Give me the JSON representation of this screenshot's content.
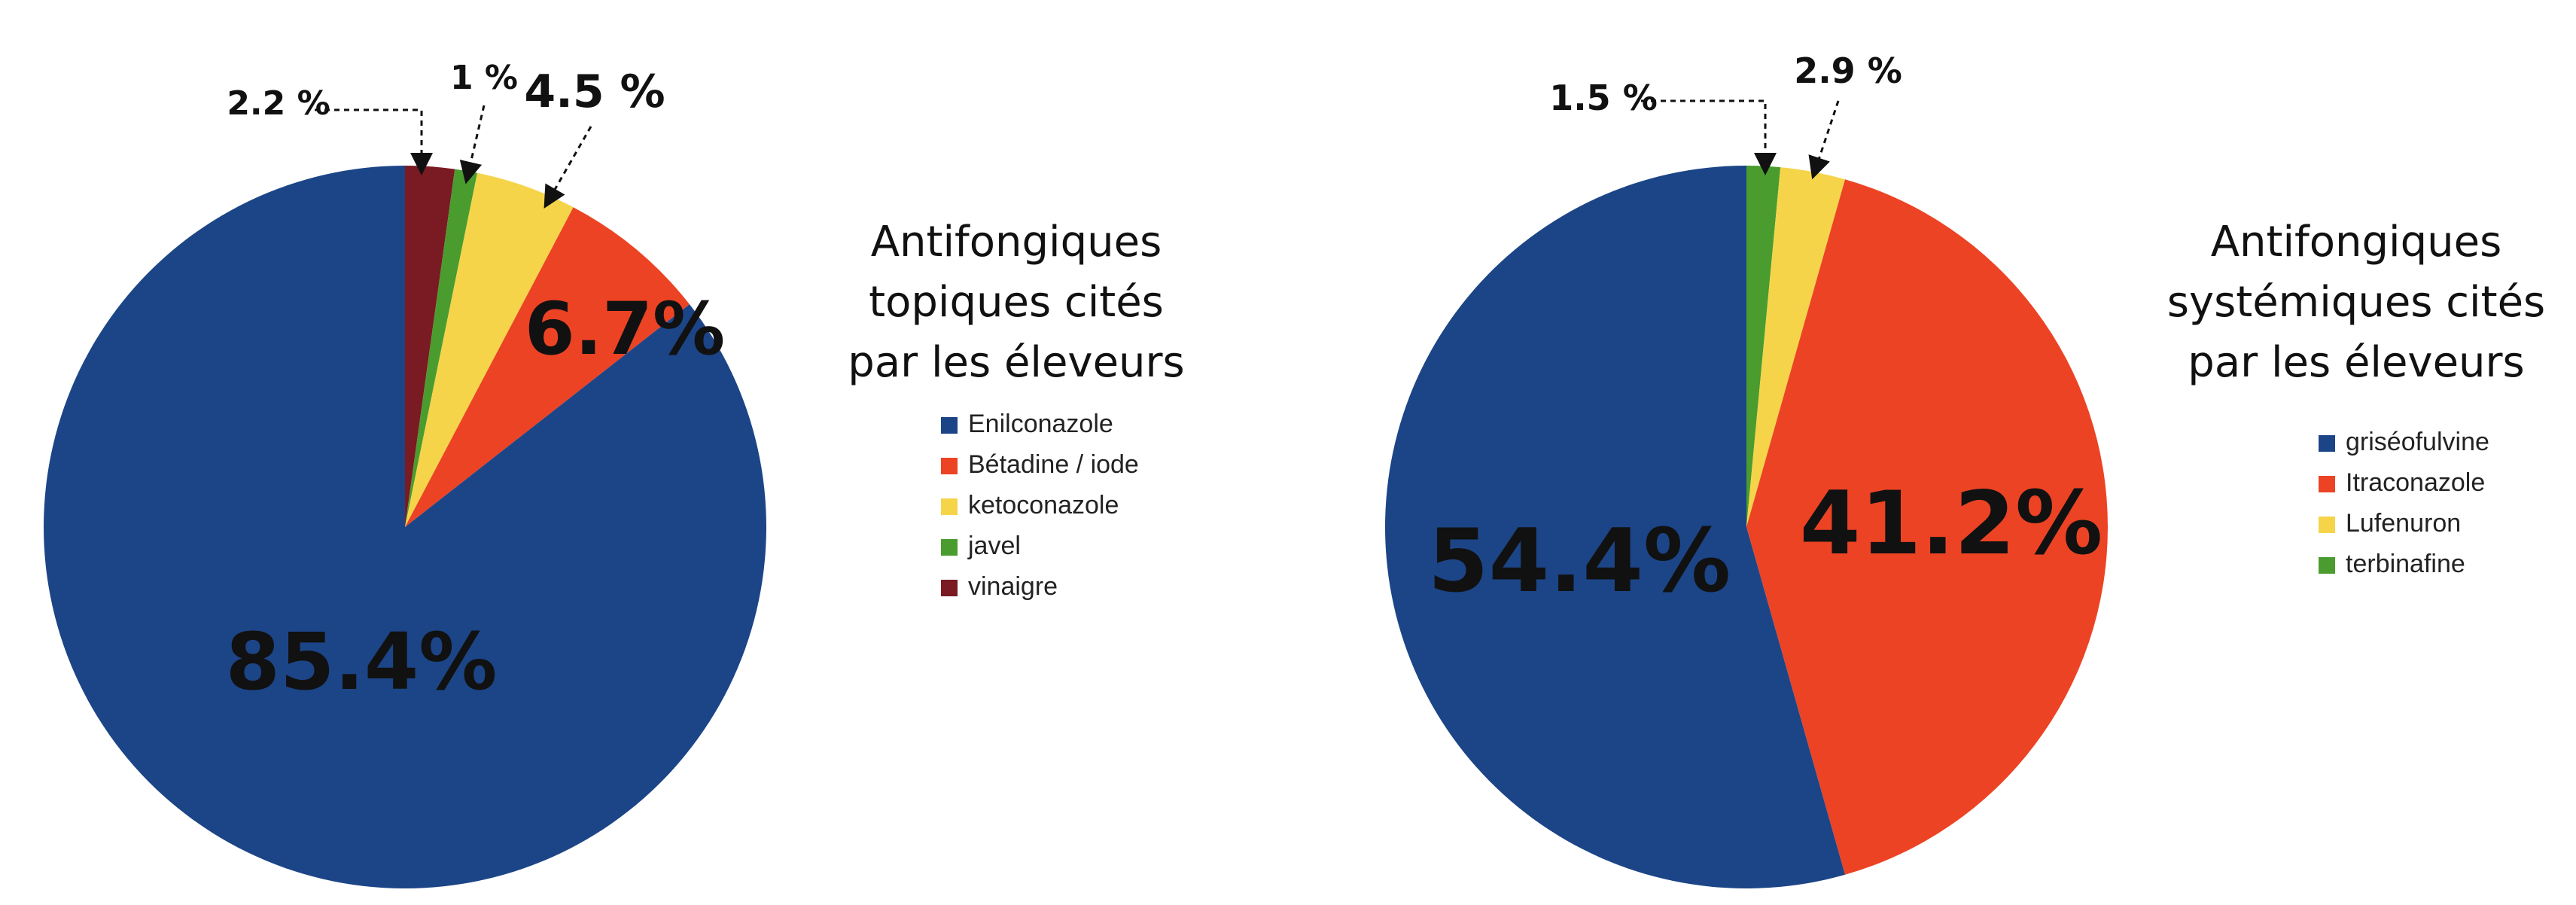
{
  "chart_data": [
    {
      "type": "pie",
      "title_lines": [
        "Antifongiques",
        "topiques cités",
        "par les éleveurs"
      ],
      "start": "top, clockwise",
      "slices": [
        {
          "name": "vinaigre",
          "value": 2.2,
          "color": "#7a1a22",
          "label": "2.2 %"
        },
        {
          "name": "javel",
          "value": 1,
          "color": "#4a9c2e",
          "label": "1 %"
        },
        {
          "name": "ketoconazole",
          "value": 4.5,
          "color": "#f5d44a",
          "label": "4.5 %"
        },
        {
          "name": "Bétadine / iode",
          "value": 6.7,
          "color": "#ec4324",
          "label": "6.7%"
        },
        {
          "name": "Enilconazole",
          "value": 85.4,
          "color": "#1c4587",
          "label": "85.4%"
        }
      ],
      "legend": [
        "Enilconazole",
        "Bétadine / iode",
        "ketoconazole",
        "javel",
        "vinaigre"
      ]
    },
    {
      "type": "pie",
      "title_lines": [
        "Antifongiques",
        "systémiques cités",
        "par les éleveurs"
      ],
      "start": "top, clockwise",
      "slices": [
        {
          "name": "terbinafine",
          "value": 1.5,
          "color": "#4a9c2e",
          "label": "1.5 %"
        },
        {
          "name": "Lufenuron",
          "value": 2.9,
          "color": "#f5d44a",
          "label": "2.9 %"
        },
        {
          "name": "Itraconazole",
          "value": 41.2,
          "color": "#ec4324",
          "label": "41.2%"
        },
        {
          "name": "griséofulvine",
          "value": 54.4,
          "color": "#1c4587",
          "label": "54.4%"
        }
      ],
      "legend": [
        "griséofulvine",
        "Itraconazole",
        "Lufenuron",
        "terbinafine"
      ]
    }
  ]
}
